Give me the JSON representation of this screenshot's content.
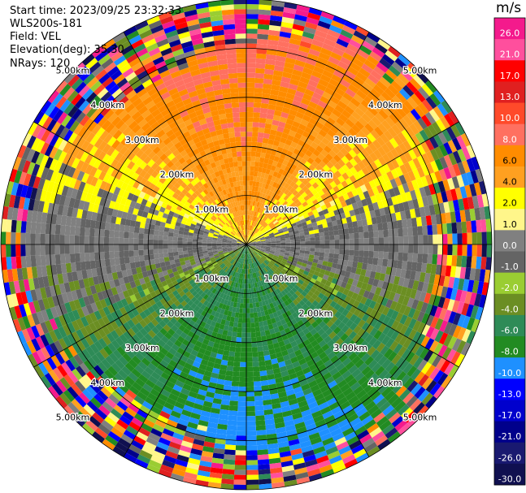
{
  "header": {
    "start_time": "Start time: 2023/09/25 23:32:33",
    "instrument": "WLS200s-181",
    "field": "Field: VEL",
    "elevation": "Elevation(deg): 35.30",
    "nrays": "NRays: 120"
  },
  "colorbar": {
    "unit": "m/s",
    "ticks": [
      "26.0",
      "21.0",
      "17.0",
      "13.0",
      "10.0",
      "8.0",
      "6.0",
      "4.0",
      "2.0",
      "1.0",
      "0.0",
      "-1.0",
      "-2.0",
      "-4.0",
      "-6.0",
      "-8.0",
      "-10.0",
      "-13.0",
      "-17.0",
      "-21.0",
      "-26.0",
      "-30.0"
    ],
    "colors": [
      "#f41a8c",
      "#ff4f9d",
      "#ff0000",
      "#e02020",
      "#ff4a2a",
      "#ff7060",
      "#ff8c00",
      "#ffa020",
      "#ffff00",
      "#fff68a",
      "#808080",
      "#646464",
      "#9acd32",
      "#6b8e23",
      "#2e8b57",
      "#228b22",
      "#1e90ff",
      "#0000ff",
      "#0000cd",
      "#00008b",
      "#191970",
      "#101050"
    ]
  },
  "chart_data": {
    "type": "ppi-radar",
    "field": "VEL",
    "units": "m/s",
    "n_rays": 120,
    "elevation_deg": 35.3,
    "range_rings_km": [
      1.0,
      2.0,
      3.0,
      4.0,
      5.0
    ],
    "range_ring_labels": [
      "1.00km",
      "2.00km",
      "3.00km",
      "4.00km",
      "5.00km"
    ],
    "max_range_km": 5.0,
    "spokes_deg": [
      0,
      30,
      60,
      90,
      120,
      150,
      180,
      210,
      240,
      270,
      300,
      330
    ],
    "regions": [
      {
        "sector": "north",
        "velocity_range": [
          6,
          17
        ],
        "desc": "orange/salmon, receding"
      },
      {
        "sector": "east-west band",
        "velocity_range": [
          -1,
          2
        ],
        "desc": "yellow and gray near zero"
      },
      {
        "sector": "south",
        "velocity_range": [
          -8,
          -2
        ],
        "desc": "green, approaching"
      },
      {
        "beyond_km": 4.0,
        "desc": "noise, all colors"
      }
    ]
  }
}
